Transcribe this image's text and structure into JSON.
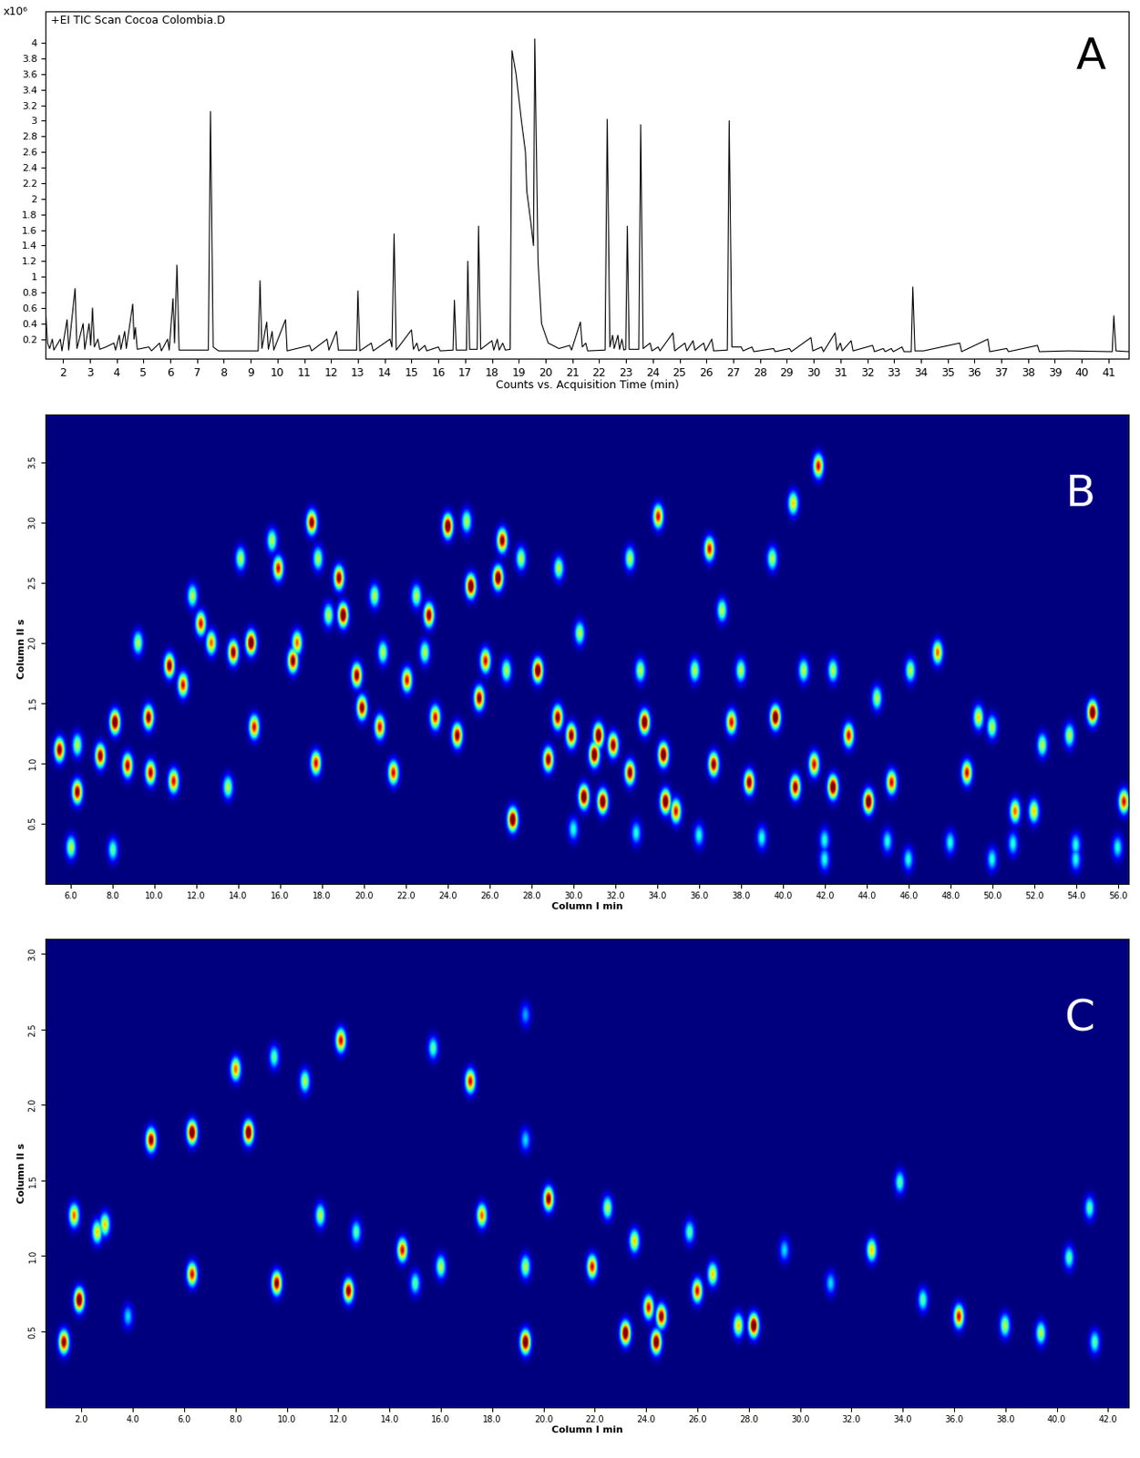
{
  "chart_data": [
    {
      "type": "line",
      "title": "+EI TIC Scan Cocoa Colombia.D",
      "x_label": "Counts vs. Acquisition Time (min)",
      "y_label": "x10⁶",
      "annotations": [
        "A"
      ],
      "color": "#000000",
      "x": [
        1.36,
        1.42,
        1.5,
        1.6,
        1.66,
        1.9,
        1.96,
        2.15,
        2.21,
        2.45,
        2.52,
        2.75,
        2.81,
        2.97,
        3.03,
        3.1,
        3.17,
        3.3,
        3.37,
        3.6,
        3.9,
        3.96,
        4.1,
        4.16,
        4.3,
        4.36,
        4.6,
        4.65,
        4.7,
        4.77,
        5.2,
        5.3,
        5.6,
        5.67,
        5.9,
        5.96,
        6.1,
        6.16,
        6.25,
        6.33,
        7.42,
        7.5,
        7.6,
        7.8,
        9.28,
        9.35,
        9.42,
        9.6,
        9.66,
        9.8,
        9.86,
        10.3,
        10.36,
        11.2,
        11.27,
        11.85,
        11.92,
        12.2,
        12.27,
        12.95,
        13.0,
        13.07,
        13.5,
        13.57,
        14.2,
        14.27,
        14.35,
        14.43,
        15.0,
        15.07,
        15.2,
        15.27,
        15.5,
        15.57,
        16.0,
        16.07,
        16.55,
        16.6,
        16.67,
        17.05,
        17.1,
        17.17,
        17.45,
        17.5,
        17.58,
        18.0,
        18.07,
        18.2,
        18.27,
        18.4,
        18.5,
        18.68,
        18.75,
        18.9,
        19.1,
        19.25,
        19.3,
        19.45,
        19.55,
        19.6,
        19.72,
        19.85,
        20.1,
        20.5,
        20.9,
        20.97,
        21.3,
        21.37,
        21.5,
        21.57,
        22.22,
        22.3,
        22.4,
        22.5,
        22.56,
        22.7,
        22.76,
        22.85,
        22.92,
        22.99,
        23.05,
        23.12,
        23.48,
        23.55,
        23.64,
        23.9,
        23.97,
        24.2,
        24.27,
        24.75,
        24.82,
        25.2,
        25.27,
        25.5,
        25.57,
        25.9,
        25.97,
        26.2,
        26.27,
        26.78,
        26.85,
        26.95,
        27.3,
        27.37,
        27.7,
        27.77,
        28.5,
        28.57,
        29.1,
        29.17,
        29.9,
        29.97,
        30.3,
        30.37,
        30.8,
        30.87,
        31.0,
        31.07,
        31.4,
        31.47,
        32.2,
        32.27,
        32.6,
        32.67,
        32.9,
        32.97,
        33.3,
        33.37,
        33.64,
        33.7,
        33.78,
        34.1,
        35.45,
        35.52,
        36.5,
        36.57,
        37.2,
        37.27,
        38.35,
        38.42,
        39.5,
        41.14,
        41.2,
        41.28,
        41.75
      ],
      "values": [
        0.5,
        0.15,
        0.08,
        0.2,
        0.06,
        0.2,
        0.05,
        0.45,
        0.06,
        0.85,
        0.08,
        0.4,
        0.07,
        0.4,
        0.12,
        0.6,
        0.1,
        0.2,
        0.07,
        0.1,
        0.15,
        0.06,
        0.25,
        0.07,
        0.3,
        0.08,
        0.65,
        0.2,
        0.35,
        0.07,
        0.1,
        0.05,
        0.15,
        0.05,
        0.2,
        0.06,
        0.72,
        0.15,
        1.15,
        0.06,
        0.06,
        3.12,
        0.1,
        0.05,
        0.05,
        0.95,
        0.08,
        0.42,
        0.07,
        0.3,
        0.06,
        0.45,
        0.05,
        0.12,
        0.05,
        0.2,
        0.06,
        0.3,
        0.06,
        0.06,
        0.82,
        0.05,
        0.15,
        0.05,
        0.2,
        0.1,
        1.55,
        0.06,
        0.32,
        0.07,
        0.15,
        0.05,
        0.12,
        0.05,
        0.1,
        0.05,
        0.06,
        0.7,
        0.06,
        0.06,
        1.2,
        0.07,
        0.07,
        1.65,
        0.07,
        0.18,
        0.06,
        0.2,
        0.06,
        0.15,
        0.06,
        0.07,
        3.9,
        3.6,
        3.0,
        2.6,
        2.1,
        1.7,
        1.4,
        4.05,
        1.2,
        0.4,
        0.15,
        0.08,
        0.12,
        0.06,
        0.42,
        0.1,
        0.15,
        0.05,
        0.06,
        3.02,
        0.1,
        0.25,
        0.08,
        0.25,
        0.07,
        0.2,
        0.06,
        0.07,
        1.65,
        0.07,
        0.07,
        2.95,
        0.08,
        0.15,
        0.05,
        0.1,
        0.05,
        0.28,
        0.05,
        0.15,
        0.05,
        0.18,
        0.06,
        0.15,
        0.05,
        0.2,
        0.05,
        0.06,
        3.0,
        0.1,
        0.1,
        0.05,
        0.1,
        0.04,
        0.08,
        0.04,
        0.08,
        0.04,
        0.22,
        0.05,
        0.1,
        0.04,
        0.28,
        0.06,
        0.15,
        0.05,
        0.18,
        0.05,
        0.12,
        0.04,
        0.08,
        0.04,
        0.08,
        0.04,
        0.1,
        0.04,
        0.04,
        0.87,
        0.05,
        0.05,
        0.15,
        0.04,
        0.2,
        0.04,
        0.08,
        0.04,
        0.12,
        0.04,
        0.05,
        0.04,
        0.5,
        0.05,
        0.04
      ],
      "xlim": [
        1.35,
        41.75
      ],
      "ylim": [
        -0.05,
        4.4
      ],
      "xticks": [
        2,
        3,
        4,
        5,
        6,
        7,
        8,
        9,
        10,
        11,
        12,
        13,
        14,
        15,
        16,
        17,
        18,
        19,
        20,
        21,
        22,
        23,
        24,
        25,
        26,
        27,
        28,
        29,
        30,
        31,
        32,
        33,
        34,
        35,
        36,
        37,
        38,
        39,
        40,
        41
      ],
      "yticks": [
        0.2,
        0.4,
        0.6,
        0.8,
        1,
        1.2,
        1.4,
        1.6,
        1.8,
        2,
        2.2,
        2.4,
        2.6,
        2.8,
        3,
        3.2,
        3.4,
        3.6,
        3.8,
        4
      ]
    },
    {
      "type": "heatmap",
      "x_label": "Column I min",
      "y_label": "Column II s",
      "annotations": [
        "B"
      ],
      "spots": {
        "x": [
          5.45,
          6.3,
          7.4,
          8.7,
          9.8,
          10.9,
          8.1,
          9.7,
          10.7,
          11.35,
          12.2,
          12.7,
          13.75,
          14.6,
          14.75,
          13.5,
          15.9,
          16.6,
          16.8,
          17.5,
          17.7,
          18.8,
          19.0,
          19.65,
          19.9,
          20.75,
          21.4,
          22.05,
          23.1,
          23.4,
          24.0,
          24.45,
          25.1,
          25.5,
          25.8,
          26.4,
          26.6,
          27.1,
          28.3,
          28.8,
          29.25,
          29.9,
          30.5,
          31.0,
          31.2,
          31.4,
          31.9,
          32.7,
          33.4,
          34.05,
          34.3,
          34.4,
          34.9,
          36.5,
          36.7,
          37.55,
          38.4,
          39.65,
          40.5,
          40.6,
          41.5,
          41.7,
          42.4,
          43.15,
          44.1,
          45.2,
          47.4,
          48.8,
          49.35,
          51.1,
          52.0,
          54.8,
          56.3,
          9.2,
          11.8,
          14.1,
          15.6,
          17.8,
          18.3,
          20.5,
          20.9,
          22.5,
          22.9,
          24.9,
          26.8,
          27.5,
          29.3,
          30.3,
          32.7,
          33.2,
          35.8,
          37.1,
          38.0,
          39.5,
          41.0,
          42.4,
          44.5,
          46.1,
          50.0,
          52.4,
          53.7,
          6.3,
          30,
          33,
          36,
          39,
          42,
          45,
          48,
          51,
          54,
          56,
          42,
          46,
          50,
          54,
          6,
          8
        ],
        "y": [
          1.11,
          0.76,
          1.06,
          0.98,
          0.92,
          0.85,
          1.34,
          1.38,
          1.81,
          1.65,
          2.16,
          2.0,
          1.92,
          2.0,
          1.3,
          0.8,
          2.62,
          1.85,
          2.0,
          3.0,
          1.0,
          2.54,
          2.23,
          1.73,
          1.46,
          1.3,
          0.92,
          1.69,
          2.23,
          1.38,
          2.97,
          1.23,
          2.47,
          1.54,
          1.85,
          2.54,
          2.85,
          0.53,
          1.77,
          1.03,
          1.38,
          1.23,
          0.72,
          1.07,
          1.23,
          0.68,
          1.15,
          0.92,
          1.34,
          3.05,
          1.07,
          0.68,
          0.6,
          2.78,
          0.99,
          1.34,
          0.84,
          1.38,
          3.16,
          0.8,
          0.99,
          3.47,
          0.8,
          1.23,
          0.68,
          0.84,
          1.92,
          0.92,
          1.38,
          0.6,
          0.6,
          1.42,
          0.68,
          2.0,
          2.39,
          2.7,
          2.85,
          2.7,
          2.23,
          2.39,
          1.92,
          2.39,
          1.92,
          3.01,
          1.77,
          2.7,
          2.62,
          2.08,
          2.7,
          1.77,
          1.77,
          2.27,
          1.77,
          2.7,
          1.77,
          1.77,
          1.54,
          1.77,
          1.3,
          1.15,
          1.23,
          1.15,
          0.45,
          0.42,
          0.4,
          0.38,
          0.36,
          0.35,
          0.34,
          0.33,
          0.32,
          0.3,
          0.2,
          0.2,
          0.2,
          0.2,
          0.3,
          0.28
        ],
        "intensity": [
          0.9,
          0.9,
          0.9,
          0.85,
          0.85,
          0.8,
          1.0,
          0.9,
          0.9,
          0.8,
          0.8,
          0.7,
          0.9,
          1.0,
          0.8,
          0.5,
          0.8,
          0.9,
          0.7,
          0.9,
          0.8,
          0.9,
          1.0,
          0.9,
          0.9,
          0.8,
          0.8,
          0.8,
          0.9,
          0.8,
          1.0,
          0.9,
          1.0,
          0.9,
          0.8,
          1.0,
          0.9,
          1.0,
          1.0,
          0.9,
          0.9,
          0.9,
          1.0,
          1.0,
          1.0,
          1.0,
          0.9,
          0.9,
          1.0,
          0.8,
          1.0,
          1.0,
          0.8,
          0.8,
          0.9,
          0.8,
          0.9,
          1.0,
          0.6,
          0.9,
          0.8,
          0.8,
          1.0,
          0.8,
          1.0,
          0.8,
          0.7,
          0.8,
          0.6,
          0.7,
          0.6,
          1.0,
          0.8,
          0.5,
          0.5,
          0.5,
          0.5,
          0.5,
          0.5,
          0.5,
          0.5,
          0.5,
          0.5,
          0.5,
          0.5,
          0.5,
          0.5,
          0.5,
          0.5,
          0.5,
          0.5,
          0.5,
          0.5,
          0.5,
          0.5,
          0.5,
          0.5,
          0.5,
          0.5,
          0.5,
          0.5,
          0.5,
          0.35,
          0.35,
          0.35,
          0.35,
          0.35,
          0.35,
          0.35,
          0.35,
          0.35,
          0.35,
          0.35,
          0.35,
          0.35,
          0.35,
          0.5,
          0.4
        ]
      },
      "xlim": [
        4.8,
        56.5
      ],
      "ylim": [
        0.0,
        3.9
      ],
      "xticks": [
        {
          "value": 6,
          "label": "6.0"
        },
        {
          "value": 8,
          "label": "8.0"
        },
        {
          "value": 10,
          "label": "10.0"
        },
        {
          "value": 12,
          "label": "12.0"
        },
        {
          "value": 14,
          "label": "14.0"
        },
        {
          "value": 16,
          "label": "16.0"
        },
        {
          "value": 18,
          "label": "18.0"
        },
        {
          "value": 20,
          "label": "20.0"
        },
        {
          "value": 22,
          "label": "22.0"
        },
        {
          "value": 24,
          "label": "24.0"
        },
        {
          "value": 26,
          "label": "26.0"
        },
        {
          "value": 28,
          "label": "28.0"
        },
        {
          "value": 30,
          "label": "30.0"
        },
        {
          "value": 32,
          "label": "32.0"
        },
        {
          "value": 34,
          "label": "34.0"
        },
        {
          "value": 36,
          "label": "36.0"
        },
        {
          "value": 38,
          "label": "38.0"
        },
        {
          "value": 40,
          "label": "40.0"
        },
        {
          "value": 42,
          "label": "42.0"
        },
        {
          "value": 44,
          "label": "44.0"
        },
        {
          "value": 46,
          "label": "46.0"
        },
        {
          "value": 48,
          "label": "48.0"
        },
        {
          "value": 50,
          "label": "50.0"
        },
        {
          "value": 52,
          "label": "52.0"
        },
        {
          "value": 54,
          "label": "54.0"
        },
        {
          "value": 56,
          "label": "56.0"
        }
      ],
      "yticks": [
        0.5,
        {
          "value": 1,
          "label": "1.0"
        },
        1.5,
        {
          "value": 2,
          "label": "2.0"
        },
        2.5,
        {
          "value": 3,
          "label": "3.0"
        },
        3.5
      ]
    },
    {
      "type": "heatmap",
      "x_label": "Column I min",
      "y_label": "Column II s",
      "annotations": [
        "C"
      ],
      "spots": {
        "x": [
          1.3,
          1.9,
          1.7,
          2.6,
          2.9,
          3.8,
          4.7,
          6.3,
          6.3,
          8.0,
          8.5,
          9.5,
          9.6,
          10.7,
          11.3,
          12.1,
          12.4,
          14.5,
          15.7,
          17.15,
          17.6,
          19.3,
          19.3,
          19.3,
          19.3,
          20.2,
          21.9,
          22.5,
          23.2,
          23.55,
          24.1,
          24.4,
          24.6,
          25.7,
          26.0,
          26.6,
          27.6,
          28.2,
          29.4,
          31.2,
          32.8,
          33.9,
          36.2,
          38.0,
          39.4,
          40.5,
          41.3,
          41.5,
          16.0,
          15.0,
          12.7,
          34.8
        ],
        "y": [
          0.43,
          0.71,
          1.27,
          1.16,
          1.21,
          0.6,
          1.77,
          1.82,
          0.88,
          2.24,
          1.82,
          2.32,
          0.82,
          2.16,
          1.27,
          2.43,
          0.77,
          1.04,
          2.38,
          2.16,
          1.27,
          0.43,
          0.93,
          1.77,
          2.6,
          1.38,
          0.93,
          1.32,
          0.49,
          1.1,
          0.66,
          0.43,
          0.6,
          1.16,
          0.77,
          0.88,
          0.54,
          0.54,
          1.04,
          0.82,
          1.04,
          1.49,
          0.6,
          0.54,
          0.49,
          0.99,
          1.32,
          0.43,
          0.93,
          0.82,
          1.16,
          0.71
        ],
        "intensity": [
          0.9,
          1.0,
          0.7,
          0.6,
          0.6,
          0.3,
          0.9,
          1.0,
          0.8,
          0.7,
          1.0,
          0.4,
          0.9,
          0.5,
          0.5,
          0.8,
          0.9,
          0.8,
          0.4,
          0.8,
          0.7,
          1.0,
          0.5,
          0.3,
          0.25,
          0.9,
          0.8,
          0.5,
          1.0,
          0.6,
          0.8,
          1.0,
          0.9,
          0.4,
          0.8,
          0.6,
          0.6,
          1.0,
          0.3,
          0.3,
          0.6,
          0.4,
          0.8,
          0.5,
          0.5,
          0.4,
          0.4,
          0.4,
          0.5,
          0.4,
          0.4,
          0.4
        ]
      },
      "xlim": [
        0.6,
        42.8
      ],
      "ylim": [
        0.0,
        3.1
      ],
      "xticks": [
        {
          "value": 2,
          "label": "2.0"
        },
        {
          "value": 4,
          "label": "4.0"
        },
        {
          "value": 6,
          "label": "6.0"
        },
        {
          "value": 8,
          "label": "8.0"
        },
        {
          "value": 10,
          "label": "10.0"
        },
        {
          "value": 12,
          "label": "12.0"
        },
        {
          "value": 14,
          "label": "14.0"
        },
        {
          "value": 16,
          "label": "16.0"
        },
        {
          "value": 18,
          "label": "18.0"
        },
        {
          "value": 20,
          "label": "20.0"
        },
        {
          "value": 22,
          "label": "22.0"
        },
        {
          "value": 24,
          "label": "24.0"
        },
        {
          "value": 26,
          "label": "26.0"
        },
        {
          "value": 28,
          "label": "28.0"
        },
        {
          "value": 30,
          "label": "30.0"
        },
        {
          "value": 32,
          "label": "32.0"
        },
        {
          "value": 34,
          "label": "34.0"
        },
        {
          "value": 36,
          "label": "36.0"
        },
        {
          "value": 38,
          "label": "38.0"
        },
        {
          "value": 40,
          "label": "40.0"
        },
        {
          "value": 42,
          "label": "42.0"
        }
      ],
      "yticks": [
        0.5,
        {
          "value": 1,
          "label": "1.0"
        },
        1.5,
        {
          "value": 2,
          "label": "2.0"
        },
        2.5,
        {
          "value": 3,
          "label": "3.0"
        }
      ]
    }
  ]
}
